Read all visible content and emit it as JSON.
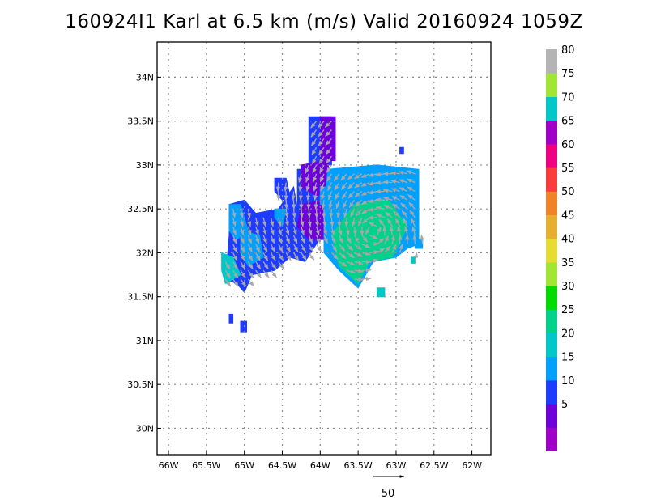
{
  "title": "160924I1 Karl at 6.5 km (m/s) Valid 20160924 1059Z",
  "chart_data": {
    "type": "heatmap",
    "title": "160924I1 Karl at 6.5 km (m/s) Valid 20160924 1059Z",
    "x_axis": {
      "range": [
        -66.15,
        -61.75
      ],
      "ticks": [
        -66,
        -65.5,
        -65,
        -64.5,
        -64,
        -63.5,
        -63,
        -62.5,
        -62
      ],
      "tick_labels": [
        "66W",
        "65.5W",
        "65W",
        "64.5W",
        "64W",
        "63.5W",
        "63W",
        "62.5W",
        "62W"
      ]
    },
    "y_axis": {
      "range": [
        29.7,
        34.4
      ],
      "ticks": [
        30,
        30.5,
        31,
        31.5,
        32,
        32.5,
        33,
        33.5,
        34
      ],
      "tick_labels": [
        "30N",
        "30.5N",
        "31N",
        "31.5N",
        "32N",
        "32.5N",
        "33N",
        "33.5N",
        "34N"
      ]
    },
    "grid": true,
    "colorbar": {
      "levels": [
        0,
        5,
        10,
        15,
        20,
        25,
        30,
        35,
        40,
        45,
        50,
        55,
        60,
        65,
        70,
        75,
        80,
        85
      ],
      "labels": [
        "5",
        "10",
        "15",
        "20",
        "25",
        "30",
        "35",
        "40",
        "45",
        "50",
        "55",
        "60",
        "65",
        "70",
        "75",
        "80"
      ],
      "colors": [
        "#a000c8",
        "#6e00dc",
        "#1e3cff",
        "#00a0ff",
        "#00c8c8",
        "#00d28c",
        "#00dc00",
        "#a0e632",
        "#e6dc32",
        "#e6af2d",
        "#f08228",
        "#fa3c3c",
        "#f00082",
        "#a000c8",
        "#00c8c8",
        "#a0e632",
        "#b4b4b4"
      ]
    },
    "vector_reference": {
      "label": "50",
      "value": 50
    },
    "regions": [
      {
        "level_index": 2,
        "polygon": [
          [
            -65.2,
            32.55
          ],
          [
            -65.2,
            32.2
          ],
          [
            -65.25,
            31.7
          ],
          [
            -65.1,
            31.65
          ],
          [
            -65.0,
            31.55
          ],
          [
            -64.9,
            31.75
          ],
          [
            -64.6,
            31.8
          ],
          [
            -64.4,
            31.95
          ],
          [
            -64.2,
            31.9
          ],
          [
            -63.9,
            32.3
          ],
          [
            -63.95,
            32.6
          ],
          [
            -64.3,
            32.5
          ],
          [
            -64.35,
            32.75
          ],
          [
            -64.55,
            32.5
          ],
          [
            -64.85,
            32.45
          ],
          [
            -65.0,
            32.6
          ]
        ]
      },
      {
        "level_index": 2,
        "polygon": [
          [
            -64.6,
            32.85
          ],
          [
            -64.45,
            32.85
          ],
          [
            -64.4,
            32.65
          ],
          [
            -64.5,
            32.6
          ],
          [
            -64.6,
            32.7
          ]
        ]
      },
      {
        "level_index": 2,
        "polygon": [
          [
            -64.3,
            32.95
          ],
          [
            -63.75,
            32.95
          ],
          [
            -63.75,
            32.45
          ],
          [
            -64.3,
            32.45
          ]
        ]
      },
      {
        "level_index": 2,
        "polygon": [
          [
            -64.15,
            33.55
          ],
          [
            -63.85,
            33.55
          ],
          [
            -63.85,
            33.0
          ],
          [
            -64.15,
            33.0
          ]
        ]
      },
      {
        "level_index": 2,
        "polygon": [
          [
            -65.2,
            31.3
          ],
          [
            -65.15,
            31.3
          ],
          [
            -65.15,
            31.2
          ],
          [
            -65.2,
            31.2
          ]
        ]
      },
      {
        "level_index": 2,
        "polygon": [
          [
            -65.05,
            31.22
          ],
          [
            -64.97,
            31.22
          ],
          [
            -64.97,
            31.1
          ],
          [
            -65.05,
            31.1
          ]
        ]
      },
      {
        "level_index": 2,
        "polygon": [
          [
            -62.95,
            33.2
          ],
          [
            -62.9,
            33.2
          ],
          [
            -62.9,
            33.13
          ],
          [
            -62.95,
            33.13
          ]
        ]
      },
      {
        "level_index": 1,
        "polygon": [
          [
            -64.25,
            32.55
          ],
          [
            -63.95,
            32.6
          ],
          [
            -63.85,
            32.4
          ],
          [
            -63.95,
            32.15
          ],
          [
            -64.15,
            32.15
          ],
          [
            -64.3,
            32.3
          ]
        ]
      },
      {
        "level_index": 1,
        "polygon": [
          [
            -64.25,
            33.0
          ],
          [
            -63.9,
            33.05
          ],
          [
            -63.85,
            32.7
          ],
          [
            -64.05,
            32.65
          ],
          [
            -64.25,
            32.75
          ]
        ]
      },
      {
        "level_index": 1,
        "polygon": [
          [
            -64.0,
            33.55
          ],
          [
            -63.8,
            33.55
          ],
          [
            -63.8,
            33.05
          ],
          [
            -64.0,
            33.05
          ]
        ]
      },
      {
        "level_index": 3,
        "polygon": [
          [
            -63.9,
            32.95
          ],
          [
            -63.25,
            33.0
          ],
          [
            -62.7,
            32.95
          ],
          [
            -62.7,
            32.1
          ],
          [
            -62.85,
            32.05
          ],
          [
            -63.0,
            31.95
          ],
          [
            -63.3,
            31.9
          ],
          [
            -63.5,
            31.6
          ],
          [
            -63.75,
            31.8
          ],
          [
            -63.95,
            32.0
          ],
          [
            -63.95,
            32.5
          ]
        ]
      },
      {
        "level_index": 3,
        "polygon": [
          [
            -65.2,
            32.55
          ],
          [
            -65.05,
            32.55
          ],
          [
            -64.95,
            32.25
          ],
          [
            -65.1,
            32.15
          ],
          [
            -65.2,
            32.25
          ]
        ]
      },
      {
        "level_index": 3,
        "polygon": [
          [
            -65.05,
            32.25
          ],
          [
            -64.8,
            32.2
          ],
          [
            -64.75,
            31.95
          ],
          [
            -64.95,
            31.85
          ],
          [
            -65.05,
            32.0
          ]
        ]
      },
      {
        "level_index": 3,
        "polygon": [
          [
            -64.6,
            32.5
          ],
          [
            -64.45,
            32.5
          ],
          [
            -64.5,
            32.3
          ],
          [
            -64.6,
            32.4
          ]
        ]
      },
      {
        "level_index": 3,
        "polygon": [
          [
            -64.0,
            32.75
          ],
          [
            -63.85,
            32.75
          ],
          [
            -63.85,
            32.55
          ],
          [
            -64.0,
            32.55
          ]
        ]
      },
      {
        "level_index": 3,
        "polygon": [
          [
            -62.75,
            32.15
          ],
          [
            -62.65,
            32.15
          ],
          [
            -62.65,
            32.05
          ],
          [
            -62.75,
            32.05
          ]
        ]
      },
      {
        "level_index": 4,
        "polygon": [
          [
            -65.3,
            32.0
          ],
          [
            -65.15,
            31.95
          ],
          [
            -65.05,
            31.75
          ],
          [
            -65.25,
            31.65
          ],
          [
            -65.3,
            31.8
          ]
        ]
      },
      {
        "level_index": 4,
        "polygon": [
          [
            -63.25,
            31.6
          ],
          [
            -63.15,
            31.6
          ],
          [
            -63.15,
            31.5
          ],
          [
            -63.25,
            31.5
          ]
        ]
      },
      {
        "level_index": 4,
        "polygon": [
          [
            -62.8,
            31.95
          ],
          [
            -62.75,
            31.95
          ],
          [
            -62.75,
            31.88
          ],
          [
            -62.8,
            31.88
          ]
        ]
      },
      {
        "level_index": 5,
        "polygon": [
          [
            -63.85,
            32.2
          ],
          [
            -63.55,
            32.55
          ],
          [
            -63.1,
            32.6
          ],
          [
            -62.85,
            32.3
          ],
          [
            -63.05,
            31.95
          ],
          [
            -63.35,
            31.9
          ],
          [
            -63.5,
            31.65
          ],
          [
            -63.75,
            31.85
          ]
        ]
      }
    ]
  }
}
